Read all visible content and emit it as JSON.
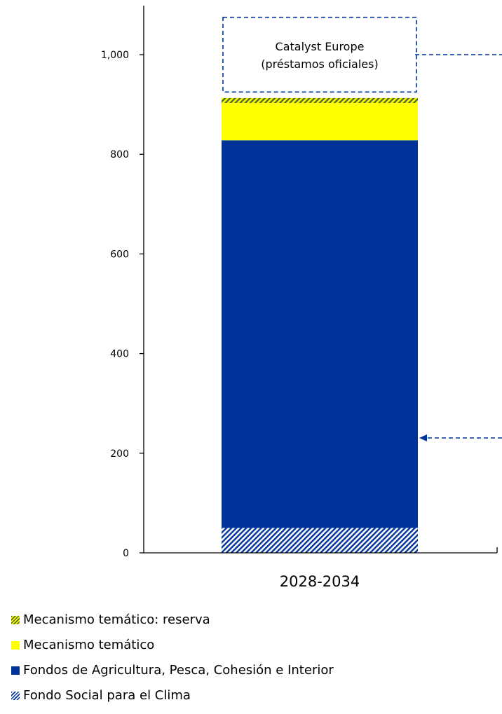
{
  "colors": {
    "navy": "#003399",
    "yellow": "#FFFF00",
    "axis": "#000000",
    "reserve_stripe": "#4E6B1E",
    "climate_stripe": "#003399"
  },
  "chart_data": {
    "type": "bar",
    "stacked": true,
    "categories": [
      "2028-2034"
    ],
    "ylim": [
      0,
      1100
    ],
    "yticks": [
      0,
      200,
      400,
      600,
      800,
      1000
    ],
    "ytick_labels": [
      "0",
      "200",
      "400",
      "600",
      "800",
      "1,000"
    ],
    "grid": false,
    "legend_position": "bottom-left",
    "series": [
      {
        "name": "Fondo Social para el Clima",
        "values": [
          50
        ],
        "color": "#003399",
        "pattern": "hatch"
      },
      {
        "name": "Fondos de Agricultura, Pesca, Cohesión e Interior",
        "values": [
          778
        ],
        "color": "#003399",
        "pattern": "solid"
      },
      {
        "name": "Mecanismo temático",
        "values": [
          75
        ],
        "color": "#FFFF00",
        "pattern": "solid"
      },
      {
        "name": "Mecanismo temático: reserva",
        "values": [
          10
        ],
        "color": "#FFFF00",
        "pattern": "hatch-dark"
      }
    ],
    "annotation_box": {
      "lines": [
        "Catalyst Europe",
        "(préstamos oficiales)"
      ],
      "y_from": 925,
      "y_to": 1075,
      "style": "dashed"
    }
  }
}
